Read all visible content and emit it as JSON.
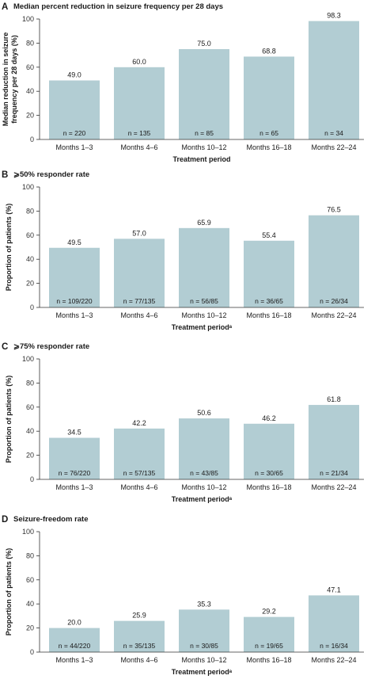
{
  "colors": {
    "bar": "#b2cdd3",
    "axis": "#333333",
    "text": "#1a1a1a"
  },
  "chart_data": [
    {
      "type": "bar",
      "panel": "A",
      "title": "Median percent reduction in seizure frequency per 28 days",
      "ylabel": "Median reduction in seizure frequency per 28 days (%)",
      "ylabel_lines": [
        "Median reduction in seizure",
        "frequency per 28 days (%)"
      ],
      "xlabel": "Treatment period",
      "ylim": [
        0,
        100
      ],
      "yticks": [
        0,
        20,
        40,
        60,
        80,
        100
      ],
      "categories": [
        "Months 1–3",
        "Months 4–6",
        "Months 10–12",
        "Months 16–18",
        "Months 22–24"
      ],
      "values": [
        49.0,
        60.0,
        75.0,
        68.8,
        98.3
      ],
      "value_labels": [
        "49.0",
        "60.0",
        "75.0",
        "68.8",
        "98.3"
      ],
      "n_labels": [
        "n = 220",
        "n = 135",
        "n = 85",
        "n = 65",
        "n = 34"
      ]
    },
    {
      "type": "bar",
      "panel": "B",
      "title": "⩾50% responder rate",
      "ylabel": "Proportion of patients (%)",
      "ylabel_lines": [
        "Proportion of patients (%)"
      ],
      "xlabel": "Treatment periodᵃ",
      "ylim": [
        0,
        100
      ],
      "yticks": [
        0,
        20,
        40,
        60,
        80,
        100
      ],
      "categories": [
        "Months 1–3",
        "Months 4–6",
        "Months 10–12",
        "Months 16–18",
        "Months 22–24"
      ],
      "values": [
        49.5,
        57.0,
        65.9,
        55.4,
        76.5
      ],
      "value_labels": [
        "49.5",
        "57.0",
        "65.9",
        "55.4",
        "76.5"
      ],
      "n_labels": [
        "n = 109/220",
        "n = 77/135",
        "n = 56/85",
        "n = 36/65",
        "n = 26/34"
      ]
    },
    {
      "type": "bar",
      "panel": "C",
      "title": "⩾75% responder rate",
      "ylabel": "Proportion of patients (%)",
      "ylabel_lines": [
        "Proportion of patients (%)"
      ],
      "xlabel": "Treatment periodᵃ",
      "ylim": [
        0,
        100
      ],
      "yticks": [
        0,
        20,
        40,
        60,
        80,
        100
      ],
      "categories": [
        "Months 1–3",
        "Months 4–6",
        "Months 10–12",
        "Months 16–18",
        "Months 22–24"
      ],
      "values": [
        34.5,
        42.2,
        50.6,
        46.2,
        61.8
      ],
      "value_labels": [
        "34.5",
        "42.2",
        "50.6",
        "46.2",
        "61.8"
      ],
      "n_labels": [
        "n = 76/220",
        "n = 57/135",
        "n = 43/85",
        "n = 30/65",
        "n = 21/34"
      ]
    },
    {
      "type": "bar",
      "panel": "D",
      "title": "Seizure-freedom rate",
      "ylabel": "Proportion of patients (%)",
      "ylabel_lines": [
        "Proportion of patients (%)"
      ],
      "xlabel": "Treatment periodᵃ",
      "ylim": [
        0,
        100
      ],
      "yticks": [
        0,
        20,
        40,
        60,
        80,
        100
      ],
      "categories": [
        "Months 1–3",
        "Months 4–6",
        "Months 10–12",
        "Months 16–18",
        "Months 22–24"
      ],
      "values": [
        20.0,
        25.9,
        35.3,
        29.2,
        47.1
      ],
      "value_labels": [
        "20.0",
        "25.9",
        "35.3",
        "29.2",
        "47.1"
      ],
      "n_labels": [
        "n = 44/220",
        "n = 35/135",
        "n = 30/85",
        "n = 19/65",
        "n = 16/34"
      ]
    }
  ]
}
